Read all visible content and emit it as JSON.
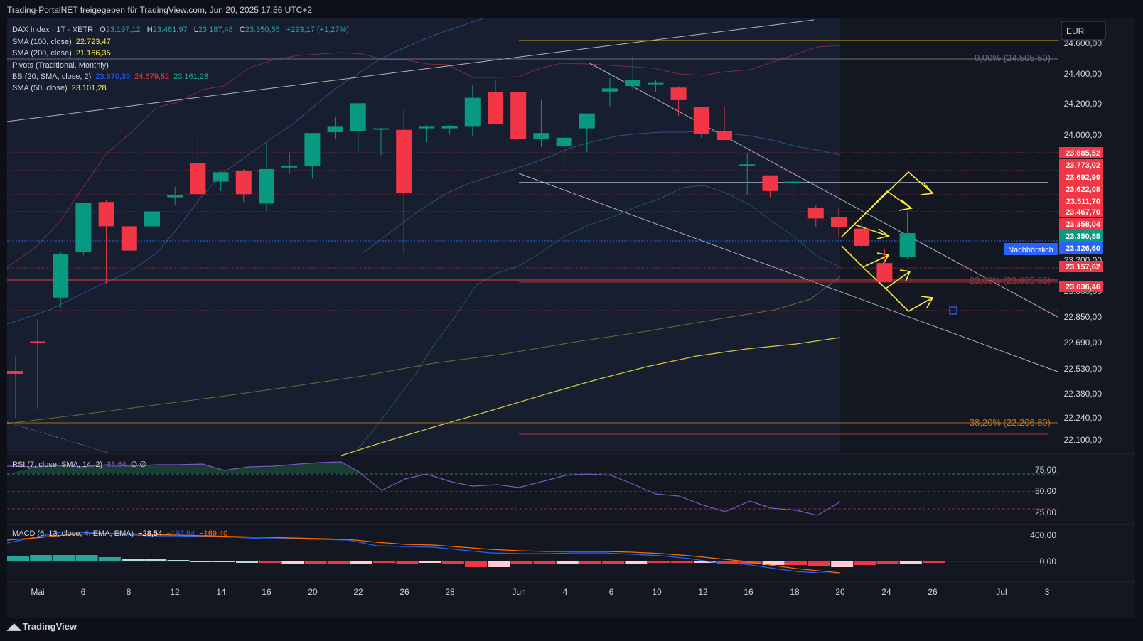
{
  "header": {
    "share_text": "Trading-PortalNET freigegeben für TradingView.com, Jun 20, 2025 17:56 UTC+2"
  },
  "footer": {
    "brand": "TradingView"
  },
  "currency": "EUR",
  "legend": {
    "symbol": "DAX Index · 1T · XETR",
    "o_label": "O",
    "o": "23.197,12",
    "h_label": "H",
    "h": "23.481,97",
    "l_label": "L",
    "l": "23.187,48",
    "c_label": "C",
    "c": "23.350,55",
    "chg": "+293,17 (+1,27%)",
    "sma100_label": "SMA (100, close)",
    "sma100": "22.723,47",
    "sma200_label": "SMA (200, close)",
    "sma200": "21.166,35",
    "pivots_label": "Pivots (Traditional, Monthly)",
    "bb_label": "BB (20, SMA, close, 2)",
    "bb_mid": "23.870,39",
    "bb_up": "24.579,52",
    "bb_low": "23.161,26",
    "sma50_label": "SMA (50, close)",
    "sma50": "23.101,28"
  },
  "rsi_legend": {
    "label": "RSI (7, close, SMA, 14, 2)",
    "value": "38,64",
    "extra": "∅ ∅"
  },
  "macd_legend": {
    "label": "MACD (6, 13, close, 4, EMA, EMA)",
    "hist": "−28,54",
    "macd": "−197,94",
    "signal": "−169,40"
  },
  "fib": {
    "f0": "0,00% (24.505,50)",
    "f236": "23,60% (23.085,36)",
    "f382": "38,20% (22.206,80)"
  },
  "price_labels": [
    {
      "v": "23.885,52",
      "c": "#f23645"
    },
    {
      "v": "23.773,02",
      "c": "#f23645"
    },
    {
      "v": "23.692,99",
      "c": "#f23645"
    },
    {
      "v": "23.622,08",
      "c": "#f23645"
    },
    {
      "v": "23.511,70",
      "c": "#f23645"
    },
    {
      "v": "23.467,70",
      "c": "#f23645"
    },
    {
      "v": "23.358,04",
      "c": "#f23645"
    },
    {
      "v": "23.350,55",
      "c": "#089981"
    },
    {
      "v": "23.326,60",
      "c": "#2962ff"
    },
    {
      "v": "23.157,62",
      "c": "#f23645"
    },
    {
      "v": "23.036,46",
      "c": "#f23645"
    }
  ],
  "after_hours_label": "Nachbörslich",
  "chart_data": {
    "type": "candlestick",
    "y_ticks": [
      "24.600,00",
      "24.400,00",
      "24.200,00",
      "24.000,00",
      "23.200,00",
      "23.000,00",
      "22.850,00",
      "22.690,00",
      "22.530,00",
      "22.380,00",
      "22.240,00",
      "22.100,00"
    ],
    "x_ticks": [
      "Mai",
      "6",
      "8",
      "12",
      "14",
      "16",
      "20",
      "22",
      "26",
      "28",
      "Jun",
      "4",
      "6",
      "10",
      "12",
      "16",
      "18",
      "20",
      "24",
      "26",
      "Jul",
      "3"
    ],
    "rsi_ticks": [
      "75,00",
      "50,00",
      "25,00"
    ],
    "macd_ticks": [
      "400,00",
      "0,00"
    ],
    "candles": [
      {
        "o": 22660,
        "h": 22800,
        "l": 22230,
        "c": 22650
      },
      {
        "o": 22940,
        "h": 23235,
        "l": 22870,
        "c": 23220
      },
      {
        "o": 23230,
        "h": 23545,
        "l": 23210,
        "c": 23545
      },
      {
        "o": 23550,
        "h": 23560,
        "l": 23030,
        "c": 23395
      },
      {
        "o": 23395,
        "h": 23395,
        "l": 23240,
        "c": 23240
      },
      {
        "o": 23395,
        "h": 23470,
        "l": 23390,
        "c": 23490
      },
      {
        "o": 23580,
        "h": 23645,
        "l": 23530,
        "c": 23595
      },
      {
        "o": 23800,
        "h": 23965,
        "l": 23530,
        "c": 23600
      },
      {
        "o": 23680,
        "h": 23750,
        "l": 23620,
        "c": 23740
      },
      {
        "o": 23750,
        "h": 23760,
        "l": 23550,
        "c": 23600
      },
      {
        "o": 23540,
        "h": 23930,
        "l": 23490,
        "c": 23760
      },
      {
        "o": 23770,
        "h": 23870,
        "l": 23730,
        "c": 23780
      },
      {
        "o": 23780,
        "h": 23970,
        "l": 23700,
        "c": 23990
      },
      {
        "o": 23995,
        "h": 24090,
        "l": 23950,
        "c": 24030
      },
      {
        "o": 24000,
        "h": 24170,
        "l": 23880,
        "c": 24180
      },
      {
        "o": 24020,
        "h": 24025,
        "l": 23850,
        "c": 24020
      },
      {
        "o": 24010,
        "h": 24140,
        "l": 23220,
        "c": 23605
      },
      {
        "o": 24020,
        "h": 24040,
        "l": 23930,
        "c": 24030
      },
      {
        "o": 24020,
        "h": 24040,
        "l": 23980,
        "c": 24035
      },
      {
        "o": 24030,
        "h": 24300,
        "l": 23970,
        "c": 24215
      },
      {
        "o": 24250,
        "h": 24325,
        "l": 24050,
        "c": 24045
      },
      {
        "o": 24250,
        "h": 24250,
        "l": 23950,
        "c": 23950
      },
      {
        "o": 23950,
        "h": 24200,
        "l": 23900,
        "c": 23990
      },
      {
        "o": 23905,
        "h": 24020,
        "l": 23780,
        "c": 23960
      },
      {
        "o": 24020,
        "h": 24100,
        "l": 23870,
        "c": 24115
      },
      {
        "o": 24255,
        "h": 24340,
        "l": 24160,
        "c": 24275
      },
      {
        "o": 24290,
        "h": 24480,
        "l": 24260,
        "c": 24330
      },
      {
        "o": 24310,
        "h": 24330,
        "l": 24250,
        "c": 24310
      },
      {
        "o": 24280,
        "h": 24290,
        "l": 24100,
        "c": 24200
      },
      {
        "o": 24155,
        "h": 24160,
        "l": 23960,
        "c": 23985
      },
      {
        "o": 24000,
        "h": 24160,
        "l": 23950,
        "c": 23945
      },
      {
        "o": 23785,
        "h": 23860,
        "l": 23600,
        "c": 23790
      },
      {
        "o": 23720,
        "h": 23720,
        "l": 23580,
        "c": 23620
      },
      {
        "o": 23670,
        "h": 23720,
        "l": 23560,
        "c": 23680
      },
      {
        "o": 23510,
        "h": 23530,
        "l": 23390,
        "c": 23445
      },
      {
        "o": 23455,
        "h": 23510,
        "l": 23330,
        "c": 23390
      },
      {
        "o": 23380,
        "h": 23475,
        "l": 23250,
        "c": 23270
      },
      {
        "o": 23160,
        "h": 23250,
        "l": 23040,
        "c": 23040
      },
      {
        "o": 23197,
        "h": 23482,
        "l": 23187,
        "c": 23351
      }
    ]
  }
}
